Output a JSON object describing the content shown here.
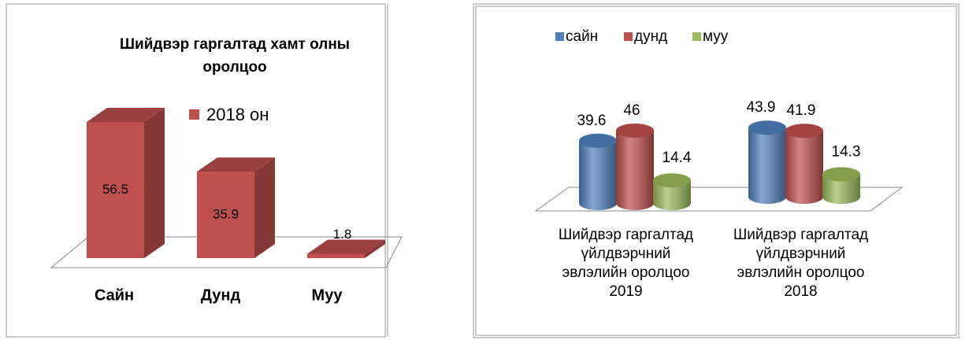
{
  "chart_data": [
    {
      "type": "bar3d",
      "title": "Шийдвэр гаргалтад хамт олны оролцоо",
      "categories": [
        "Сайн",
        "Дунд",
        "Муу"
      ],
      "series": [
        {
          "name": "2018 он",
          "color": "#c0504d",
          "values": [
            56.5,
            35.9,
            1.8
          ]
        }
      ]
    },
    {
      "type": "cylinder",
      "categories": [
        "Шийдвэр гаргалтад үйлдвэрчний эвлэлийн оролцоо 2019",
        "Шийдвэр гаргалтад үйлдвэрчний эвлэлийн оролцоо 2018"
      ],
      "series": [
        {
          "name": "сайн",
          "color": "#4f81bd",
          "values": [
            39.6,
            43.9
          ]
        },
        {
          "name": "дунд",
          "color": "#c0504d",
          "values": [
            46,
            41.9
          ]
        },
        {
          "name": "муу",
          "color": "#9bbb59",
          "values": [
            14.4,
            14.3
          ]
        }
      ]
    }
  ]
}
